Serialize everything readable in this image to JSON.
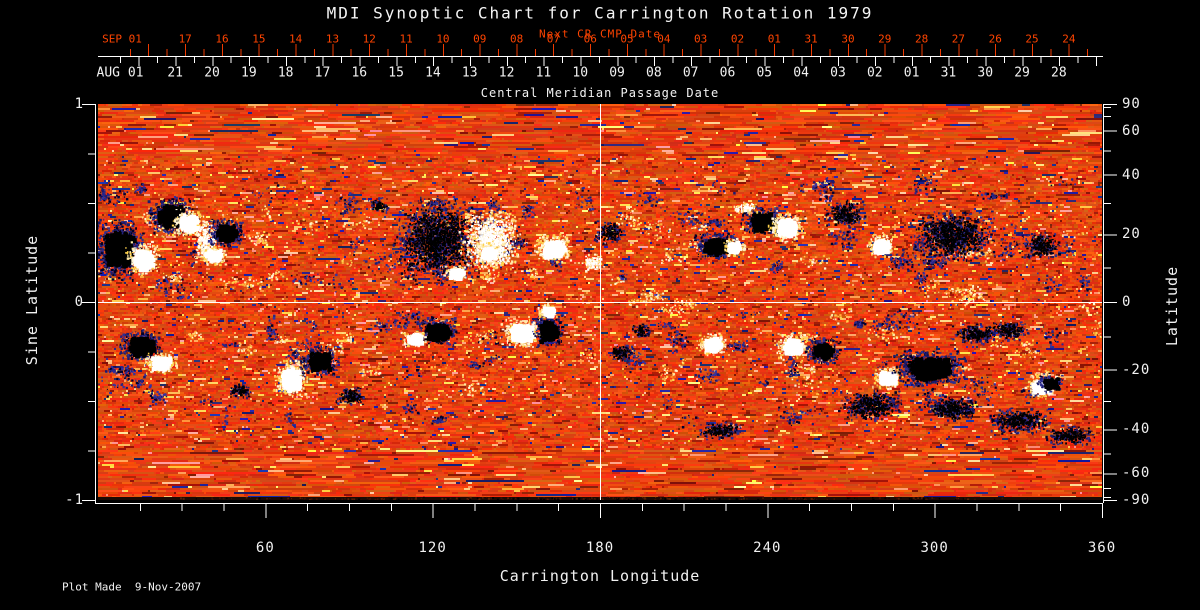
{
  "title": "MDI Synoptic Chart for Carrington Rotation 1979",
  "footer": {
    "plot_made": "Plot Made  9-Nov-2007"
  },
  "colors": {
    "background": "#000000",
    "text_white": "#f2f2f2",
    "text_red": "#ff4400",
    "tick_red": "#ee3a00",
    "axis_white": "#ffffff",
    "base_orange": "#e8430f",
    "bright_plage": "#ffe9a0",
    "negative_polarity": "#000000",
    "negative_fringe": "#27278a",
    "positive_polarity": "#ffffff",
    "positive_fringe": "#ffd34f"
  },
  "top_axis": {
    "red_title": "Next CR CMP Date",
    "red_month_label": "SEP 01",
    "red_days": [
      "17",
      "16",
      "15",
      "14",
      "13",
      "12",
      "11",
      "10",
      "09",
      "08",
      "07",
      "06",
      "05",
      "04",
      "03",
      "02",
      "01",
      "31",
      "30",
      "29",
      "28",
      "27",
      "26",
      "25",
      "24"
    ],
    "white_month_label": "AUG 01",
    "white_days": [
      "21",
      "20",
      "19",
      "18",
      "17",
      "16",
      "15",
      "14",
      "13",
      "12",
      "11",
      "10",
      "09",
      "08",
      "07",
      "06",
      "05",
      "04",
      "03",
      "02",
      "01",
      "31",
      "30",
      "29",
      "28"
    ],
    "subtitle": "Central Meridian Passage Date"
  },
  "left_axis": {
    "label": "Sine Latitude",
    "tick_labels": [
      "1",
      "0",
      "-1"
    ],
    "tick_values": [
      1,
      0,
      -1
    ],
    "minor_tick_values": [
      0.75,
      0.5,
      0.25,
      -0.25,
      -0.5,
      -0.75
    ]
  },
  "right_axis": {
    "label": "Latitude",
    "tick_labels": [
      "90",
      "60",
      "40",
      "20",
      "0",
      "-20",
      "-40",
      "-60",
      "-90"
    ],
    "tick_values": [
      90,
      60,
      40,
      20,
      0,
      -20,
      -40,
      -60,
      -90
    ],
    "minor_tick_values": [
      80,
      70,
      50,
      30,
      10,
      -10,
      -30,
      -50,
      -70,
      -80
    ]
  },
  "bottom_axis": {
    "label": "Carrington Longitude",
    "tick_labels": [
      "60",
      "120",
      "180",
      "240",
      "300",
      "360"
    ],
    "tick_values": [
      60,
      120,
      180,
      240,
      300,
      360
    ],
    "minor_step_deg": 15,
    "range": [
      0,
      360
    ]
  },
  "chart_data": {
    "type": "heatmap",
    "title": "MDI Synoptic Chart for Carrington Rotation 1979",
    "description": "Full-disk line-of-sight magnetic field synoptic map; orange granular background, white/yellow = positive polarity active regions, black/navy = negative polarity active regions, concentrated in two activity belts near sine latitude +0.3 and -0.3.",
    "x_range_deg": [
      0,
      360
    ],
    "y_range_sine_latitude": [
      -1,
      1
    ],
    "crosshair": {
      "longitude": 180,
      "sine_latitude": 0
    },
    "active_regions": [
      {
        "lon": 7.2,
        "slat": 0.273,
        "rlon": 7.2,
        "rslat": 0.121,
        "pol": "neg",
        "solid": true
      },
      {
        "lon": 15.8,
        "slat": 0.222,
        "rlon": 4.7,
        "rslat": 0.066,
        "pol": "pos",
        "solid": true
      },
      {
        "lon": 25.8,
        "slat": 0.439,
        "rlon": 6.1,
        "rslat": 0.076,
        "pol": "neg",
        "solid": true
      },
      {
        "lon": 32.3,
        "slat": 0.404,
        "rlon": 4.7,
        "rslat": 0.056,
        "pol": "pos",
        "solid": true
      },
      {
        "lon": 38.4,
        "slat": 0.313,
        "rlon": 3.2,
        "rslat": 0.091,
        "pol": "pos",
        "solid": false
      },
      {
        "lon": 45.5,
        "slat": 0.354,
        "rlon": 5.0,
        "rslat": 0.056,
        "pol": "neg",
        "solid": true
      },
      {
        "lon": 40.9,
        "slat": 0.242,
        "rlon": 3.9,
        "rslat": 0.04,
        "pol": "pos",
        "solid": true
      },
      {
        "lon": 100.4,
        "slat": 0.49,
        "rlon": 2.9,
        "rslat": 0.03,
        "pol": "neg",
        "solid": false
      },
      {
        "lon": 121.5,
        "slat": 0.313,
        "rlon": 12.2,
        "rslat": 0.172,
        "pol": "neg",
        "solid": false
      },
      {
        "lon": 140.6,
        "slat": 0.313,
        "rlon": 8.6,
        "rslat": 0.131,
        "pol": "pos",
        "solid": false
      },
      {
        "lon": 139.5,
        "slat": 0.253,
        "rlon": 3.6,
        "rslat": 0.04,
        "pol": "pos",
        "solid": true
      },
      {
        "lon": 128.0,
        "slat": 0.152,
        "rlon": 3.2,
        "rslat": 0.03,
        "pol": "pos",
        "solid": true
      },
      {
        "lon": 162.8,
        "slat": 0.278,
        "rlon": 5.4,
        "rslat": 0.056,
        "pol": "pos",
        "solid": true
      },
      {
        "lon": 177.1,
        "slat": 0.202,
        "rlon": 3.2,
        "rslat": 0.035,
        "pol": "pos",
        "solid": false
      },
      {
        "lon": 183.6,
        "slat": 0.354,
        "rlon": 4.7,
        "rslat": 0.045,
        "pol": "neg",
        "solid": false
      },
      {
        "lon": 238.1,
        "slat": 0.414,
        "rlon": 6.1,
        "rslat": 0.061,
        "pol": "neg",
        "solid": true
      },
      {
        "lon": 246.7,
        "slat": 0.384,
        "rlon": 5.0,
        "rslat": 0.061,
        "pol": "pos",
        "solid": true
      },
      {
        "lon": 221.6,
        "slat": 0.288,
        "rlon": 6.5,
        "rslat": 0.051,
        "pol": "neg",
        "solid": true
      },
      {
        "lon": 227.7,
        "slat": 0.283,
        "rlon": 3.2,
        "rslat": 0.035,
        "pol": "pos",
        "solid": true
      },
      {
        "lon": 231.6,
        "slat": 0.48,
        "rlon": 3.9,
        "rslat": 0.025,
        "pol": "pos",
        "solid": false
      },
      {
        "lon": 267.8,
        "slat": 0.449,
        "rlon": 5.7,
        "rslat": 0.056,
        "pol": "neg",
        "solid": false
      },
      {
        "lon": 280.4,
        "slat": 0.288,
        "rlon": 3.9,
        "rslat": 0.045,
        "pol": "pos",
        "solid": true
      },
      {
        "lon": 306.2,
        "slat": 0.338,
        "rlon": 11.5,
        "rslat": 0.101,
        "pol": "neg",
        "solid": false
      },
      {
        "lon": 337.8,
        "slat": 0.288,
        "rlon": 5.7,
        "rslat": 0.051,
        "pol": "neg",
        "solid": false
      },
      {
        "lon": 15.1,
        "slat": -0.217,
        "rlon": 6.1,
        "rslat": 0.061,
        "pol": "neg",
        "solid": true
      },
      {
        "lon": 22.2,
        "slat": -0.303,
        "rlon": 4.7,
        "rslat": 0.045,
        "pol": "pos",
        "solid": true
      },
      {
        "lon": 68.8,
        "slat": -0.384,
        "rlon": 4.7,
        "rslat": 0.076,
        "pol": "pos",
        "solid": true
      },
      {
        "lon": 78.9,
        "slat": -0.293,
        "rlon": 5.4,
        "rslat": 0.061,
        "pol": "neg",
        "solid": true
      },
      {
        "lon": 121.5,
        "slat": -0.146,
        "rlon": 5.7,
        "rslat": 0.056,
        "pol": "neg",
        "solid": true
      },
      {
        "lon": 112.9,
        "slat": -0.182,
        "rlon": 3.6,
        "rslat": 0.035,
        "pol": "pos",
        "solid": true
      },
      {
        "lon": 151.3,
        "slat": -0.152,
        "rlon": 5.7,
        "rslat": 0.061,
        "pol": "pos",
        "solid": true
      },
      {
        "lon": 161.3,
        "slat": -0.141,
        "rlon": 4.3,
        "rslat": 0.066,
        "pol": "neg",
        "solid": true
      },
      {
        "lon": 161.0,
        "slat": -0.04,
        "rlon": 2.9,
        "rslat": 0.03,
        "pol": "pos",
        "solid": true
      },
      {
        "lon": 220.1,
        "slat": -0.207,
        "rlon": 4.3,
        "rslat": 0.045,
        "pol": "pos",
        "solid": true
      },
      {
        "lon": 248.8,
        "slat": -0.217,
        "rlon": 4.7,
        "rslat": 0.051,
        "pol": "pos",
        "solid": true
      },
      {
        "lon": 259.6,
        "slat": -0.242,
        "rlon": 5.0,
        "rslat": 0.051,
        "pol": "neg",
        "solid": true
      },
      {
        "lon": 282.5,
        "slat": -0.379,
        "rlon": 4.3,
        "rslat": 0.045,
        "pol": "pos",
        "solid": true
      },
      {
        "lon": 297.6,
        "slat": -0.328,
        "rlon": 10.0,
        "rslat": 0.071,
        "pol": "neg",
        "solid": true
      },
      {
        "lon": 314.4,
        "slat": -0.157,
        "rlon": 7.2,
        "rslat": 0.04,
        "pol": "neg",
        "solid": false
      },
      {
        "lon": 326.3,
        "slat": -0.141,
        "rlon": 5.7,
        "rslat": 0.04,
        "pol": "neg",
        "solid": false
      },
      {
        "lon": 337.8,
        "slat": -0.419,
        "rlon": 4.3,
        "rslat": 0.045,
        "pol": "pos",
        "solid": true
      },
      {
        "lon": 341.3,
        "slat": -0.404,
        "rlon": 3.6,
        "rslat": 0.035,
        "pol": "neg",
        "solid": true
      },
      {
        "lon": 276.8,
        "slat": -0.52,
        "rlon": 9.0,
        "rslat": 0.061,
        "pol": "neg",
        "solid": false
      },
      {
        "lon": 305.5,
        "slat": -0.535,
        "rlon": 7.9,
        "rslat": 0.051,
        "pol": "neg",
        "solid": false
      },
      {
        "lon": 330.6,
        "slat": -0.596,
        "rlon": 9.0,
        "rslat": 0.051,
        "pol": "neg",
        "solid": false
      },
      {
        "lon": 348.5,
        "slat": -0.672,
        "rlon": 7.2,
        "rslat": 0.04,
        "pol": "neg",
        "solid": false
      },
      {
        "lon": 223.0,
        "slat": -0.646,
        "rlon": 6.5,
        "rslat": 0.035,
        "pol": "neg",
        "solid": false
      },
      {
        "lon": 187.2,
        "slat": -0.253,
        "rlon": 3.6,
        "rslat": 0.035,
        "pol": "neg",
        "solid": false
      },
      {
        "lon": 194.3,
        "slat": -0.141,
        "rlon": 2.9,
        "rslat": 0.03,
        "pol": "neg",
        "solid": false
      },
      {
        "lon": 50.9,
        "slat": -0.444,
        "rlon": 3.6,
        "rslat": 0.03,
        "pol": "neg",
        "solid": false
      },
      {
        "lon": 90.4,
        "slat": -0.47,
        "rlon": 4.3,
        "rslat": 0.035,
        "pol": "neg",
        "solid": false
      }
    ]
  }
}
